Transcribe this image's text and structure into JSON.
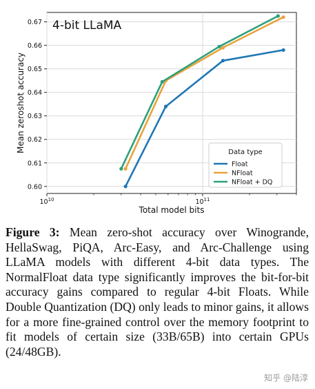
{
  "chart_data": {
    "type": "line",
    "title": "4-bit LLaMA",
    "xlabel": "Total model bits",
    "ylabel": "Mean zeroshot accuracy",
    "xscale": "log",
    "xlim": [
      10000000000,
      400000000000
    ],
    "ylim": [
      0.597,
      0.674
    ],
    "yticks": [
      "0.60",
      "0.61",
      "0.62",
      "0.63",
      "0.64",
      "0.65",
      "0.66",
      "0.67"
    ],
    "xticks": [
      {
        "value": 10000000000,
        "base": "10",
        "exp": "10"
      },
      {
        "value": 100000000000,
        "base": "10",
        "exp": "11"
      }
    ],
    "grid": true,
    "legend": {
      "title": "Data type",
      "placement": "lower-right"
    },
    "series": [
      {
        "name": "Float",
        "color": "#1f77b4",
        "x": [
          32000000000,
          58000000000,
          135000000000,
          330000000000
        ],
        "y": [
          0.6,
          0.634,
          0.6535,
          0.658
        ]
      },
      {
        "name": "NFloat",
        "color": "#e8a33d",
        "x": [
          32000000000,
          58000000000,
          135000000000,
          330000000000
        ],
        "y": [
          0.6075,
          0.645,
          0.659,
          0.672
        ]
      },
      {
        "name": "NFloat + DQ",
        "color": "#2ca07c",
        "x": [
          30000000000,
          55000000000,
          128000000000,
          305000000000
        ],
        "y": [
          0.6075,
          0.6445,
          0.6595,
          0.6725
        ]
      }
    ]
  },
  "caption": {
    "label": "Figure 3:",
    "text": "Mean zero-shot accuracy over Winogrande, HellaSwag, PiQA, Arc-Easy, and Arc-Challenge using LLaMA models with different 4-bit data types. The NormalFloat data type significantly improves the bit-for-bit accuracy gains compared to regular 4-bit Floats. While Double Quantization (DQ) only leads to minor gains, it allows for a more fine-grained control over the memory footprint to fit models of certain size (33B/65B) into certain GPUs (24/48GB)."
  },
  "watermark": {
    "text": "知乎 @陆淳"
  }
}
